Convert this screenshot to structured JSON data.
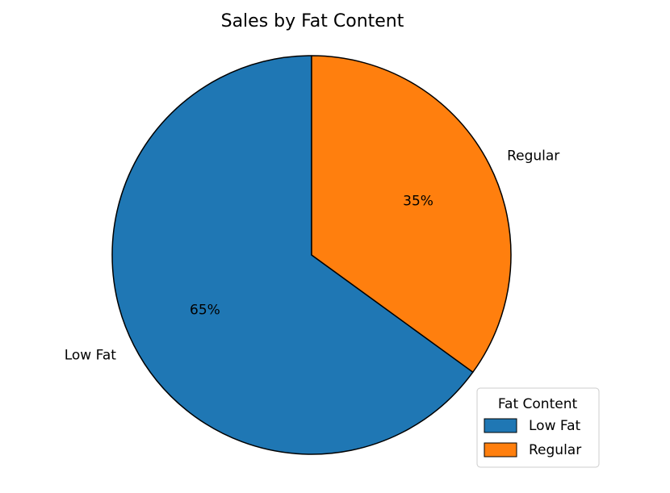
{
  "chart_data": {
    "type": "pie",
    "title": "Sales by Fat Content",
    "categories": [
      "Low Fat",
      "Regular"
    ],
    "values": [
      65,
      35
    ],
    "percent_labels": [
      "65%",
      "35%"
    ],
    "colors": [
      "#1f77b4",
      "#ff7f0e"
    ],
    "edge_color": "#000000",
    "legend": {
      "title": "Fat Content",
      "placement": "lower-right",
      "entries": [
        "Low Fat",
        "Regular"
      ]
    }
  }
}
